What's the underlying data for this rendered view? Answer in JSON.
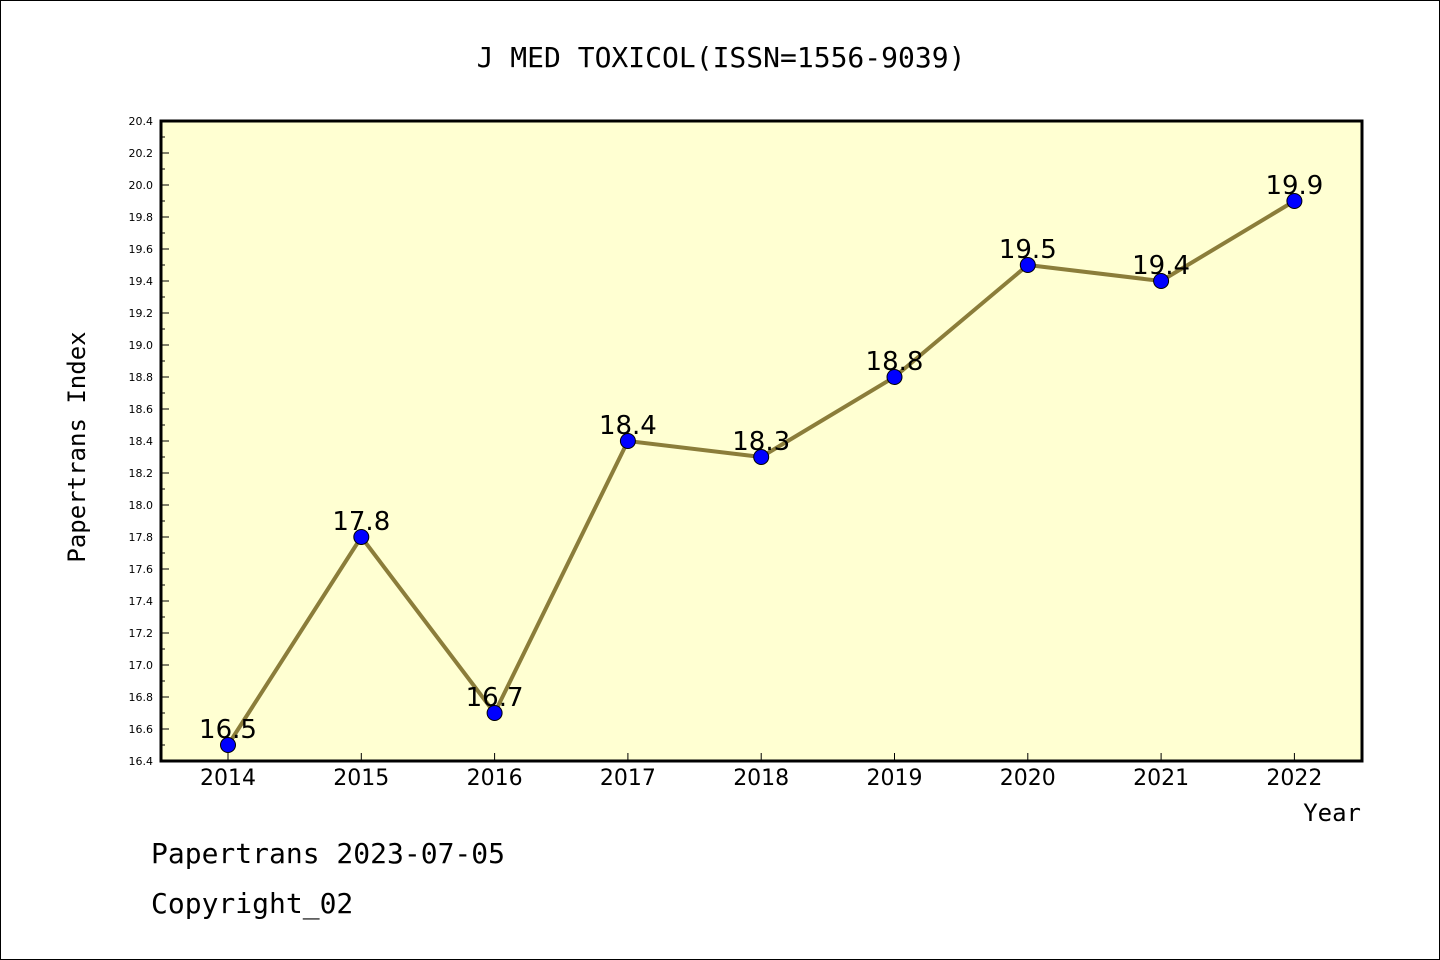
{
  "chart_data": {
    "type": "line",
    "title": "J MED TOXICOL(ISSN=1556-9039)",
    "xlabel": "Year",
    "ylabel": "Papertrans Index",
    "categories": [
      "2014",
      "2015",
      "2016",
      "2017",
      "2018",
      "2019",
      "2020",
      "2021",
      "2022"
    ],
    "series": [
      {
        "values": [
          16.5,
          17.8,
          16.7,
          18.4,
          18.3,
          18.8,
          19.5,
          19.4,
          19.9
        ],
        "labels": [
          "16.5",
          "17.8",
          "16.7",
          "18.4",
          "18.3",
          "18.8",
          "19.5",
          "19.4",
          "19.9"
        ]
      }
    ],
    "ylim": [
      16.4,
      20.4
    ],
    "yticks": [
      "16.4",
      "16.6",
      "16.8",
      "17.0",
      "17.2",
      "17.4",
      "17.6",
      "17.8",
      "18.0",
      "18.2",
      "18.4",
      "18.6",
      "18.8",
      "19.0",
      "19.2",
      "19.4",
      "19.6",
      "19.8",
      "20.0",
      "20.2",
      "20.4"
    ],
    "grid": false,
    "legend": "none",
    "colors": {
      "plot_background": "#ffffd2",
      "line": "#8b7d3a",
      "marker": "#0000ff"
    }
  },
  "footer": {
    "line1": "Papertrans 2023-07-05",
    "line2": "Copyright_02"
  }
}
